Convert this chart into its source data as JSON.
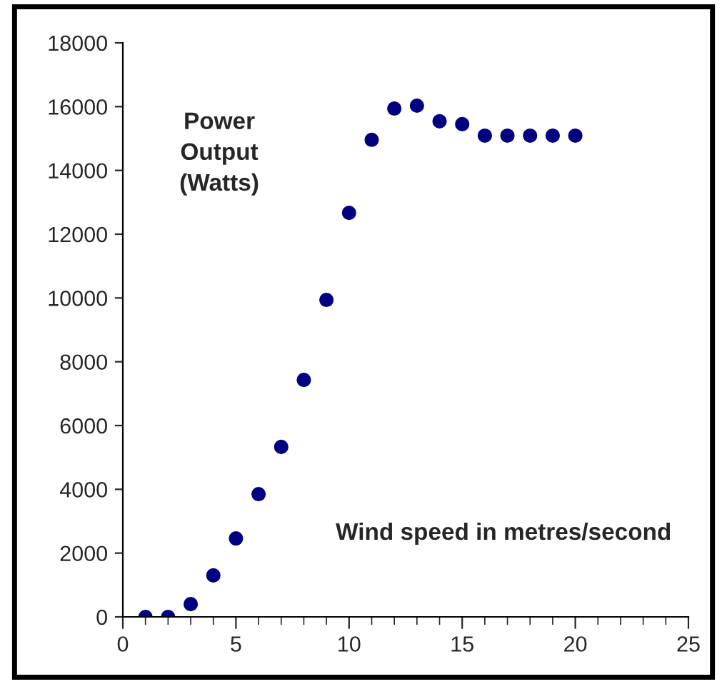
{
  "chart_data": {
    "type": "scatter",
    "x": [
      1,
      2,
      3,
      4,
      5,
      6,
      7,
      8,
      9,
      10,
      11,
      12,
      13,
      14,
      15,
      16,
      17,
      18,
      19,
      20
    ],
    "series": [
      {
        "color": "#000080",
        "values": [
          0,
          0,
          400,
          1300,
          2460,
          3850,
          5330,
          7430,
          9940,
          12670,
          14960,
          15940,
          16030,
          15540,
          15450,
          15090,
          15090,
          15090,
          15090,
          15090
        ]
      }
    ],
    "xlim": [
      0,
      25
    ],
    "xticks": [
      0,
      5,
      10,
      15,
      20,
      25
    ],
    "ylim": [
      0,
      18000
    ],
    "yticks": [
      0,
      2000,
      4000,
      6000,
      8000,
      10000,
      12000,
      14000,
      16000,
      18000
    ],
    "annotations": [
      "Power\nOutput\n(Watts)",
      "Wind speed in metres/second"
    ],
    "marker": "circle",
    "grid": false,
    "legend": false
  }
}
